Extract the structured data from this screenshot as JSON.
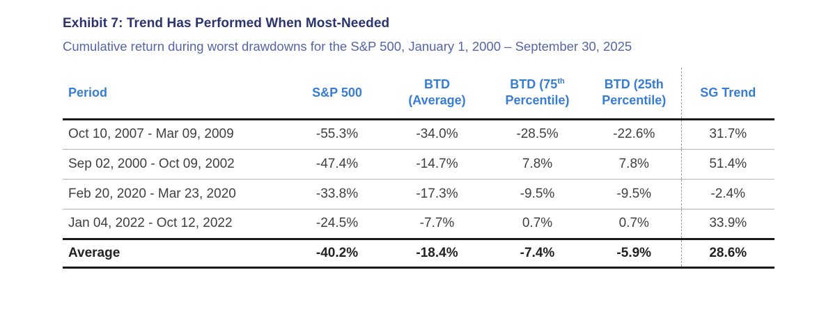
{
  "exhibit": {
    "title": "Exhibit 7: Trend Has Performed When Most-Needed",
    "subtitle": "Cumulative return during worst drawdowns for the S&P 500, January 1, 2000 – September 30, 2025"
  },
  "colors": {
    "title_navy": "#2B3470",
    "subtitle_blue": "#5565A8",
    "header_blue": "#377DD5",
    "body_text": "#3F3F3F",
    "heavy_rule": "#1A1A1A",
    "light_rule": "#B3B3B3",
    "dashed_rule": "#9C9C9C"
  },
  "table": {
    "columns": [
      {
        "label": "Period",
        "align": "left"
      },
      {
        "label": "S&P 500"
      },
      {
        "line1": "BTD",
        "line2": "(Average)"
      },
      {
        "line1": "BTD (75",
        "sup": "th",
        "line2": "Percentile)"
      },
      {
        "line1": "BTD (25th",
        "line2": "Percentile)"
      },
      {
        "label": "SG Trend"
      }
    ],
    "rows": [
      {
        "period": "Oct 10, 2007 - Mar 09, 2009",
        "sp500": "-55.3%",
        "btd_avg": "-34.0%",
        "btd_75": "-28.5%",
        "btd_25": "-22.6%",
        "sg_trend": "31.7%"
      },
      {
        "period": "Sep 02, 2000 - Oct 09, 2002",
        "sp500": "-47.4%",
        "btd_avg": "-14.7%",
        "btd_75": "7.8%",
        "btd_25": "7.8%",
        "sg_trend": "51.4%"
      },
      {
        "period": "Feb 20, 2020 - Mar 23, 2020",
        "sp500": "-33.8%",
        "btd_avg": "-17.3%",
        "btd_75": "-9.5%",
        "btd_25": "-9.5%",
        "sg_trend": "-2.4%"
      },
      {
        "period": "Jan 04, 2022 - Oct 12, 2022",
        "sp500": "-24.5%",
        "btd_avg": "-7.7%",
        "btd_75": "0.7%",
        "btd_25": "0.7%",
        "sg_trend": "33.9%"
      }
    ],
    "average": {
      "period": "Average",
      "sp500": "-40.2%",
      "btd_avg": "-18.4%",
      "btd_75": "-7.4%",
      "btd_25": "-5.9%",
      "sg_trend": "28.6%"
    }
  },
  "chart_data": {
    "type": "table",
    "title": "Exhibit 7: Trend Has Performed When Most-Needed",
    "subtitle": "Cumulative return during worst drawdowns for the S&P 500, January 1, 2000 – September 30, 2025",
    "columns": [
      "Period",
      "S&P 500",
      "BTD (Average)",
      "BTD (75th Percentile)",
      "BTD (25th Percentile)",
      "SG Trend"
    ],
    "rows": [
      [
        "Oct 10, 2007 - Mar 09, 2009",
        -55.3,
        -34.0,
        -28.5,
        -22.6,
        31.7
      ],
      [
        "Sep 02, 2000 - Oct 09, 2002",
        -47.4,
        -14.7,
        7.8,
        7.8,
        51.4
      ],
      [
        "Feb 20, 2020 - Mar 23, 2020",
        -33.8,
        -17.3,
        -9.5,
        -9.5,
        -2.4
      ],
      [
        "Jan 04, 2022 - Oct 12, 2022",
        -24.5,
        -7.7,
        0.7,
        0.7,
        33.9
      ],
      [
        "Average",
        -40.2,
        -18.4,
        -7.4,
        -5.9,
        28.6
      ]
    ],
    "units": "percent",
    "notes": "Values are cumulative returns during each S&P 500 drawdown period; Average row is bold with heavy rules; dashed vertical divider separates SG Trend column"
  }
}
